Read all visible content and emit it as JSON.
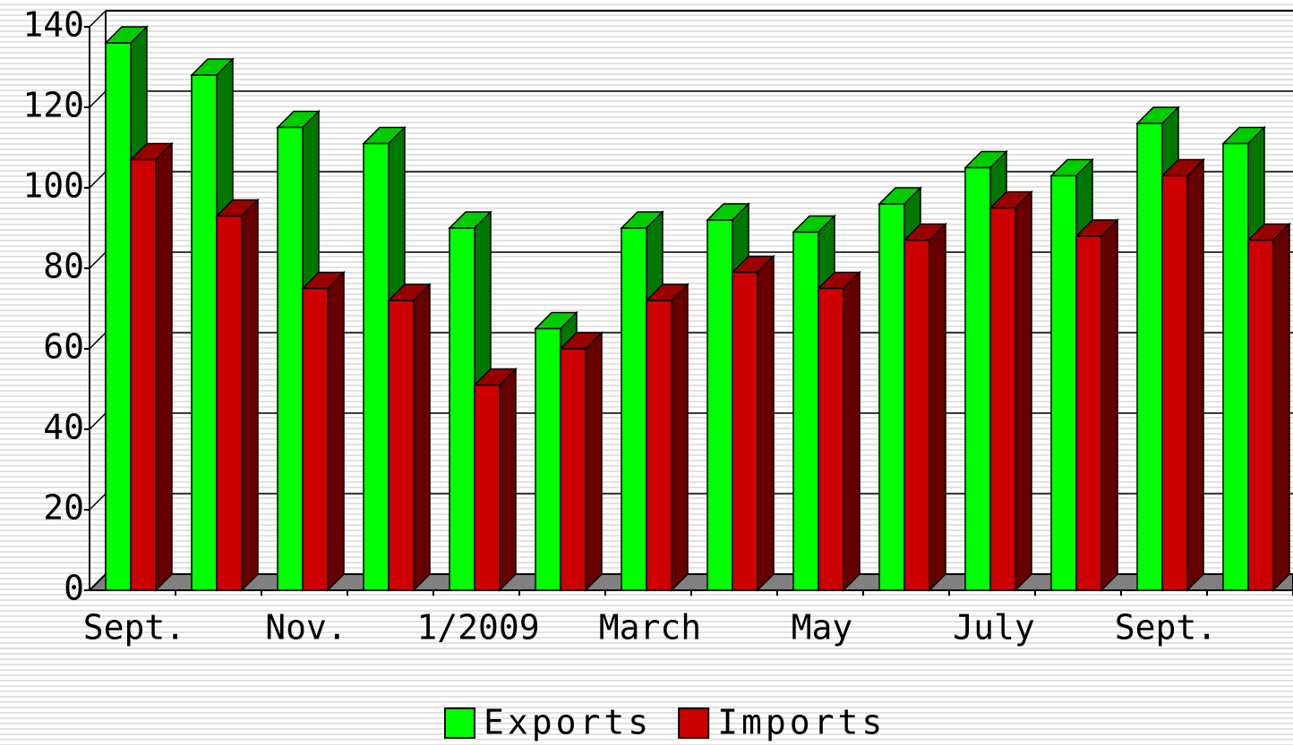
{
  "chart_data": {
    "type": "bar3d",
    "categories": [
      "Sept.",
      null,
      "Nov.",
      null,
      "1/2009",
      null,
      "March",
      null,
      "May",
      null,
      "July",
      null,
      "Sept.",
      null
    ],
    "series": [
      {
        "name": "Exports",
        "color": "#00ff00",
        "values": [
          136,
          128,
          115,
          111,
          90,
          65,
          90,
          92,
          89,
          96,
          105,
          103,
          116,
          111
        ]
      },
      {
        "name": "Imports",
        "color": "#cc0000",
        "values": [
          107,
          93,
          75,
          72,
          51,
          60,
          72,
          79,
          75,
          87,
          95,
          88,
          103,
          87
        ]
      }
    ],
    "ylim": [
      0,
      140
    ],
    "yticks": [
      0,
      20,
      40,
      60,
      80,
      100,
      120,
      140
    ],
    "grid": true,
    "legend": "bottom"
  }
}
